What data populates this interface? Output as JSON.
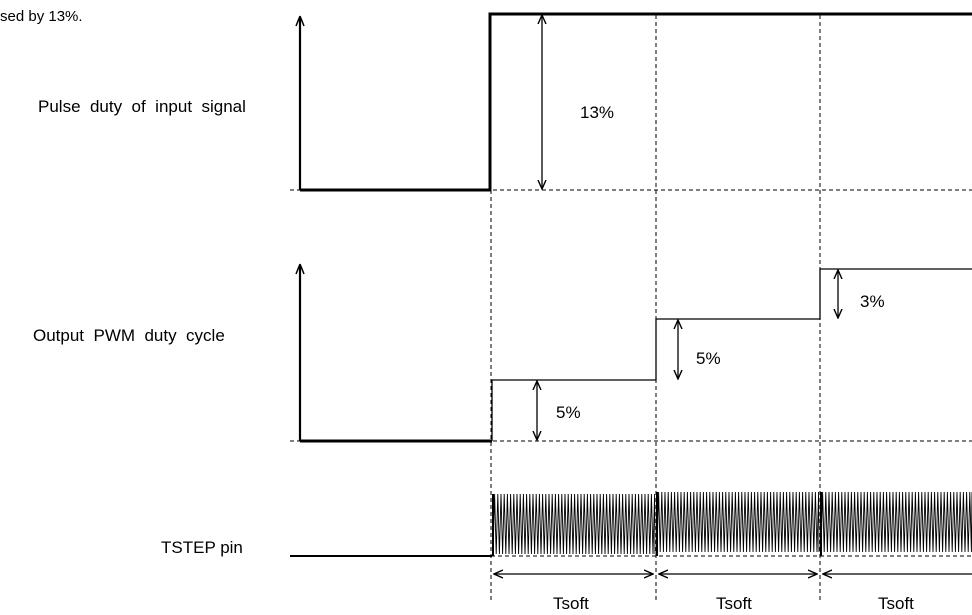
{
  "caption": "sed by 13%.",
  "labels": {
    "input_signal": "Pulse  duty  of  input  signal",
    "output_pwm": "Output  PWM  duty  cycle",
    "tstep_pin": "TSTEP pin"
  },
  "annotations": {
    "input_step": "13%",
    "pwm_step_1": "5%",
    "pwm_step_2": "5%",
    "pwm_step_3": "3%"
  },
  "intervals": [
    "Tsoft",
    "Tsoft",
    "Tsoft"
  ]
}
